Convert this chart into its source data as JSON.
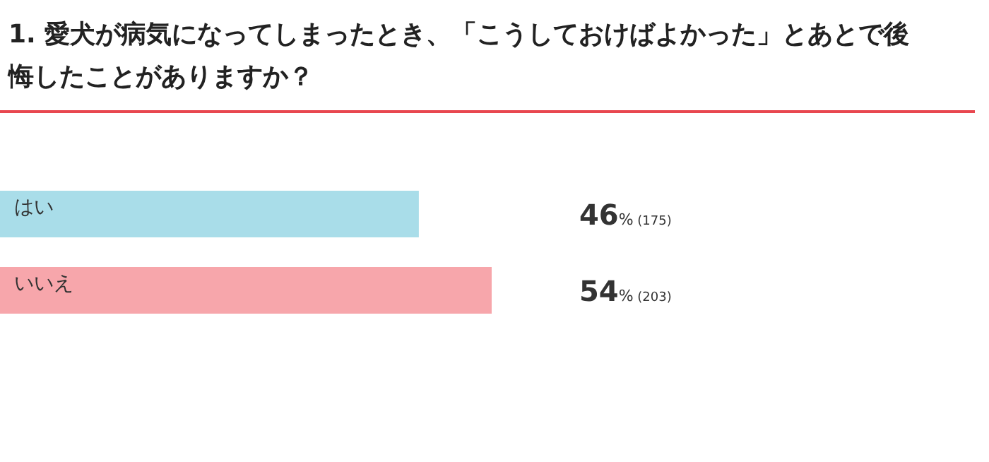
{
  "chart_data": {
    "type": "bar",
    "orientation": "horizontal",
    "title": "1. 愛犬が病気になってしまったとき、「こうしておけばよかった」とあとで後悔したことがありますか？",
    "categories": [
      "はい",
      "いいえ"
    ],
    "values": [
      46,
      54
    ],
    "colors": [
      "#a9dde9",
      "#f7a6ab"
    ],
    "value_labels": [
      "46% (175)",
      "54% (203)"
    ]
  }
}
